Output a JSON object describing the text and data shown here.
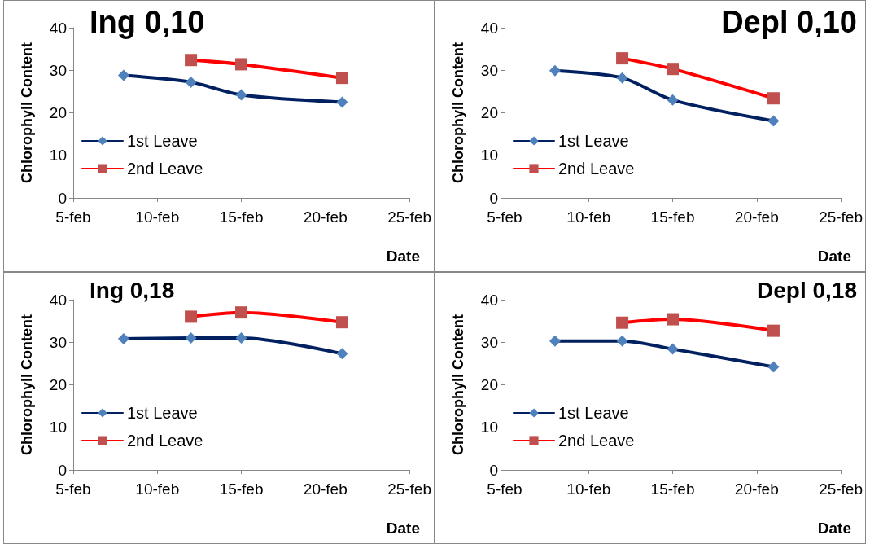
{
  "chart_data": [
    {
      "type": "line",
      "title": "Ing 0,10",
      "xlabel": "Date",
      "ylabel": "Chlorophyll Content",
      "legend": "bottom left",
      "grid": false,
      "xlim": [
        "--02-05",
        "--02-25"
      ],
      "xticks": [
        {
          "value": "--02-05",
          "label": "5-feb"
        },
        {
          "value": "--02-10",
          "label": "10-feb"
        },
        {
          "value": "--02-15",
          "label": "15-feb"
        },
        {
          "value": "--02-20",
          "label": "20-feb"
        },
        {
          "value": "--02-25",
          "label": "25-feb"
        }
      ],
      "ylim": [
        0,
        40
      ],
      "yticks": [
        0,
        10,
        20,
        30,
        40
      ],
      "series": [
        {
          "name": "1st Leave",
          "color": "#002060",
          "marker": "diamond",
          "colors": [
            "#4f81bd",
            "#4f81bd",
            "#4f81bd",
            "#4f81bd"
          ],
          "x": [
            "--02-08",
            "--02-12",
            "--02-15",
            "--02-21"
          ],
          "values": [
            28.8,
            27.2,
            24.2,
            22.5
          ]
        },
        {
          "name": "2nd Leave",
          "color": "#ff0000",
          "marker": "square",
          "colors": [
            "#c0504d",
            "#c0504d",
            "#c0504d"
          ],
          "x": [
            "--02-12",
            "--02-15",
            "--02-21"
          ],
          "values": [
            32.4,
            31.4,
            28.2
          ]
        }
      ]
    },
    {
      "type": "line",
      "title": "Depl 0,10",
      "xlabel": "Date",
      "ylabel": "Chlorophyll Content",
      "legend": "bottom left",
      "grid": false,
      "xlim": [
        "--02-05",
        "--02-25"
      ],
      "xticks": [
        {
          "value": "--02-05",
          "label": "5-feb"
        },
        {
          "value": "--02-10",
          "label": "10-feb"
        },
        {
          "value": "--02-15",
          "label": "15-feb"
        },
        {
          "value": "--02-20",
          "label": "20-feb"
        },
        {
          "value": "--02-25",
          "label": "25-feb"
        }
      ],
      "ylim": [
        0,
        40
      ],
      "yticks": [
        0,
        10,
        20,
        30,
        40
      ],
      "series": [
        {
          "name": "1st Leave",
          "color": "#002060",
          "marker": "diamond",
          "colors": [
            "#4f81bd",
            "#4f81bd",
            "#4f81bd",
            "#4f81bd"
          ],
          "x": [
            "--02-08",
            "--02-12",
            "--02-15",
            "--02-21"
          ],
          "values": [
            29.9,
            28.2,
            23,
            18.1
          ]
        },
        {
          "name": "2nd Leave",
          "color": "#ff0000",
          "marker": "square",
          "colors": [
            "#c0504d",
            "#c0504d",
            "#c0504d"
          ],
          "x": [
            "--02-12",
            "--02-15",
            "--02-21"
          ],
          "values": [
            32.8,
            30.3,
            23.4
          ]
        }
      ]
    },
    {
      "type": "line",
      "title": "Ing 0,18",
      "xlabel": "Date",
      "ylabel": "Chlorophyll Content",
      "legend": "bottom left",
      "grid": false,
      "xlim": [
        "--02-05",
        "--02-25"
      ],
      "xticks": [
        {
          "value": "--02-05",
          "label": "5-feb"
        },
        {
          "value": "--02-10",
          "label": "10-feb"
        },
        {
          "value": "--02-15",
          "label": "15-feb"
        },
        {
          "value": "--02-20",
          "label": "20-feb"
        },
        {
          "value": "--02-25",
          "label": "25-feb"
        }
      ],
      "ylim": [
        0,
        40
      ],
      "yticks": [
        0,
        10,
        20,
        30,
        40
      ],
      "series": [
        {
          "name": "1st Leave",
          "color": "#002060",
          "marker": "diamond",
          "colors": [
            "#4f81bd",
            "#4f81bd",
            "#4f81bd",
            "#4f81bd"
          ],
          "x": [
            "--02-08",
            "--02-12",
            "--02-15",
            "--02-21"
          ],
          "values": [
            30.8,
            31,
            31,
            27.3
          ]
        },
        {
          "name": "2nd Leave",
          "color": "#ff0000",
          "marker": "square",
          "colors": [
            "#c0504d",
            "#c0504d",
            "#c0504d"
          ],
          "x": [
            "--02-12",
            "--02-15",
            "--02-21"
          ],
          "values": [
            36,
            37,
            34.7
          ]
        }
      ]
    },
    {
      "type": "line",
      "title": "Depl 0,18",
      "xlabel": "Date",
      "ylabel": "Chlorophyll Content",
      "legend": "bottom left",
      "grid": false,
      "xlim": [
        "--02-05",
        "--02-25"
      ],
      "xticks": [
        {
          "value": "--02-05",
          "label": "5-feb"
        },
        {
          "value": "--02-10",
          "label": "10-feb"
        },
        {
          "value": "--02-15",
          "label": "15-feb"
        },
        {
          "value": "--02-20",
          "label": "20-feb"
        },
        {
          "value": "--02-25",
          "label": "25-feb"
        }
      ],
      "ylim": [
        0,
        40
      ],
      "yticks": [
        0,
        10,
        20,
        30,
        40
      ],
      "series": [
        {
          "name": "1st Leave",
          "color": "#002060",
          "marker": "diamond",
          "colors": [
            "#4f81bd",
            "#4f81bd",
            "#4f81bd",
            "#4f81bd"
          ],
          "x": [
            "--02-08",
            "--02-12",
            "--02-15",
            "--02-21"
          ],
          "values": [
            30.3,
            30.3,
            28.4,
            24.2
          ]
        },
        {
          "name": "2nd Leave",
          "color": "#ff0000",
          "marker": "square",
          "colors": [
            "#c0504d",
            "#c0504d",
            "#c0504d"
          ],
          "x": [
            "--02-12",
            "--02-15",
            "--02-21"
          ],
          "values": [
            34.6,
            35.4,
            32.7
          ]
        }
      ]
    }
  ]
}
